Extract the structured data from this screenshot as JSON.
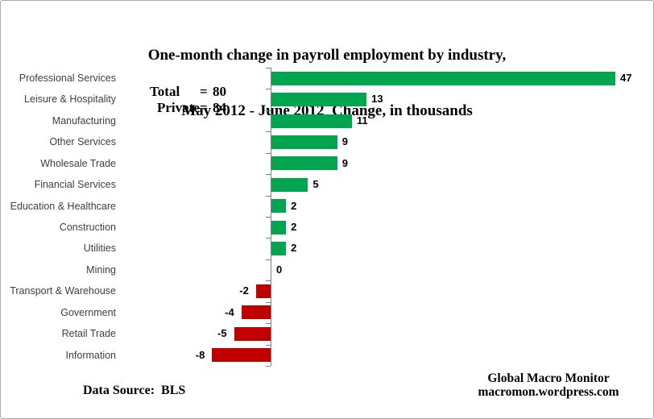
{
  "title": {
    "line1": "One-month change in payroll employment by industry,",
    "line2": "May 2012 - June 2012  Change, in thousands"
  },
  "annotation": {
    "equals": "=",
    "rows": [
      {
        "label": "Total",
        "value": "80"
      },
      {
        "label": "Private",
        "value": "84"
      }
    ]
  },
  "footer": {
    "source": "Data Source:  BLS",
    "credit_line1": "Global Macro Monitor",
    "credit_line2": "macromon.wordpress.com"
  },
  "colors": {
    "positive_bar": "#00A550",
    "negative_bar": "#C00000",
    "axis": "#808080"
  },
  "chart_data": {
    "type": "bar",
    "orientation": "horizontal",
    "title": "One-month change in payroll employment by industry, May 2012 - June 2012",
    "xlabel": "Change, in thousands",
    "categories": [
      "Professional Services",
      "Leisure & Hospitality",
      "Manufacturing",
      "Other Services",
      "Wholesale Trade",
      "Financial Services",
      "Education & Healthcare",
      "Construction",
      "Utilities",
      "Mining",
      "Transport & Warehouse",
      "Government",
      "Retail Trade",
      "Information"
    ],
    "values": [
      47,
      13,
      11,
      9,
      9,
      5,
      2,
      2,
      2,
      0,
      -2,
      -4,
      -5,
      -8
    ],
    "data_labels": [
      "47",
      "13",
      "11",
      "9",
      "9",
      "5",
      "2",
      "2",
      "2",
      "0",
      "-2",
      "-4",
      "-5",
      "-8"
    ],
    "xlim": [
      -10,
      52
    ],
    "grid": false,
    "legend": false,
    "totals": {
      "total": 80,
      "private": 84
    }
  }
}
